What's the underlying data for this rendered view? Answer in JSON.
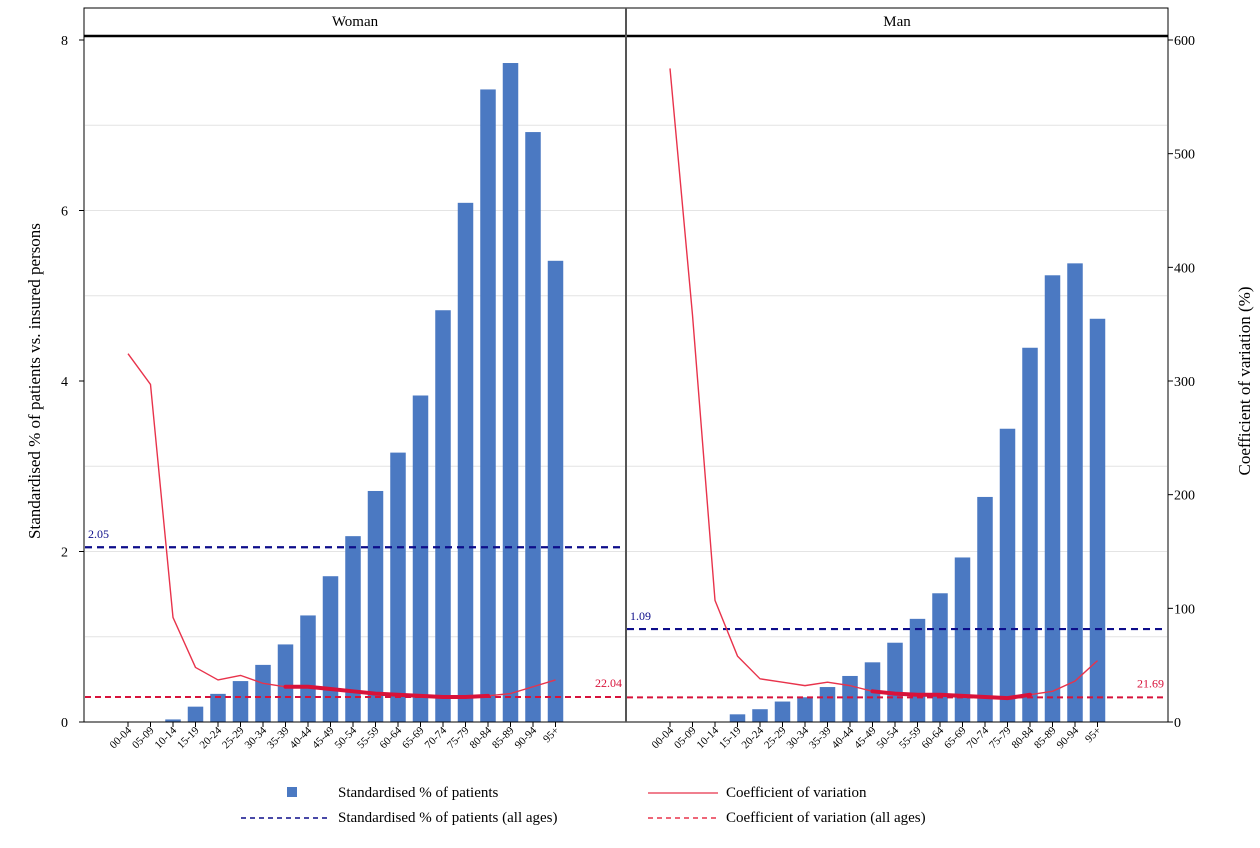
{
  "chart_data": {
    "type": "bar",
    "ylabel": "Standardised % of patients vs. insured persons",
    "y2label": "Coefficient of variation (%)",
    "ylim": [
      0,
      8
    ],
    "y2lim": [
      0,
      600
    ],
    "yticks": [
      "0",
      "2",
      "4",
      "6",
      "8"
    ],
    "y2ticks": [
      "0",
      "100",
      "200",
      "300",
      "400",
      "500",
      "600"
    ],
    "grid": "horizontal",
    "legend_position": "bottom",
    "categories": [
      "00-04",
      "05-09",
      "10-14",
      "15-19",
      "20-24",
      "25-29",
      "30-34",
      "35-39",
      "40-44",
      "45-49",
      "50-54",
      "55-59",
      "60-64",
      "65-69",
      "70-74",
      "75-79",
      "80-84",
      "85-89",
      "90-94",
      "95+"
    ],
    "panels": [
      {
        "name": "Woman",
        "bar_values": [
          0,
          0,
          0.03,
          0.18,
          0.33,
          0.48,
          0.67,
          0.91,
          1.25,
          1.71,
          2.18,
          2.71,
          3.16,
          3.83,
          4.83,
          6.09,
          7.42,
          7.73,
          6.92,
          5.41
        ],
        "cv_values": [
          324,
          297,
          92,
          48,
          37,
          41,
          34,
          31,
          31,
          29,
          27,
          25,
          24,
          23,
          22,
          22,
          23,
          25,
          31,
          37
        ],
        "cv_thick_range": [
          7,
          16
        ],
        "ref_patients": 2.05,
        "ref_patients_label": "2.05",
        "ref_cv": 22.04,
        "ref_cv_label": "22.04"
      },
      {
        "name": "Man",
        "bar_values": [
          0,
          0,
          0,
          0.09,
          0.15,
          0.24,
          0.29,
          0.41,
          0.54,
          0.7,
          0.93,
          1.21,
          1.51,
          1.93,
          2.64,
          3.44,
          4.39,
          5.24,
          5.38,
          4.73
        ],
        "cv_values": [
          575,
          358,
          107,
          58,
          38,
          35,
          32,
          35,
          32,
          27,
          25,
          24,
          24,
          23,
          22,
          21,
          24,
          27,
          36,
          54
        ],
        "cv_thick_range": [
          9,
          16
        ],
        "ref_patients": 1.09,
        "ref_patients_label": "1.09",
        "ref_cv": 21.69,
        "ref_cv_label": "21.69"
      }
    ],
    "legend": [
      {
        "label": "Standardised % of patients",
        "kind": "bar",
        "color": "#4b79c2"
      },
      {
        "label": "Coefficient of variation",
        "kind": "line",
        "color": "#e8334b"
      },
      {
        "label": "Standardised % of patients (all ages)",
        "kind": "dash",
        "color": "#0d0d8a"
      },
      {
        "label": "Coefficient of variation (all ages)",
        "kind": "dash",
        "color": "#e8334b"
      }
    ],
    "colors": {
      "bar": "#4b79c2",
      "cv_line": "#e8334b",
      "cv_thick": "#d8123a",
      "ref_patients": "#0d0d8a",
      "ref_cv": "#d8123a",
      "grid": "#e4e4e4"
    }
  }
}
